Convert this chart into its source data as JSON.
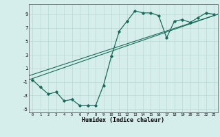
{
  "xlabel": "Humidex (Indice chaleur)",
  "x_values": [
    0,
    1,
    2,
    3,
    4,
    5,
    6,
    7,
    8,
    9,
    10,
    11,
    12,
    13,
    14,
    15,
    16,
    17,
    18,
    19,
    20,
    21,
    22,
    23
  ],
  "y_main": [
    -0.7,
    -1.8,
    -2.8,
    -2.5,
    -3.8,
    -3.6,
    -4.5,
    -4.5,
    -4.5,
    -1.5,
    2.8,
    6.5,
    8.0,
    9.5,
    9.2,
    9.2,
    8.8,
    5.5,
    8.0,
    8.2,
    7.8,
    8.5,
    9.2,
    9.0
  ],
  "line_color": "#1a6b5a",
  "bg_color": "#d5eeeb",
  "grid_color": "#b8d8d4",
  "ylim": [
    -5.5,
    10.5
  ],
  "xlim": [
    -0.5,
    23.5
  ],
  "yticks": [
    -5,
    -3,
    -1,
    1,
    3,
    5,
    7,
    9
  ],
  "xticks": [
    0,
    1,
    2,
    3,
    4,
    5,
    6,
    7,
    8,
    9,
    10,
    11,
    12,
    13,
    14,
    15,
    16,
    17,
    18,
    19,
    20,
    21,
    22,
    23
  ]
}
